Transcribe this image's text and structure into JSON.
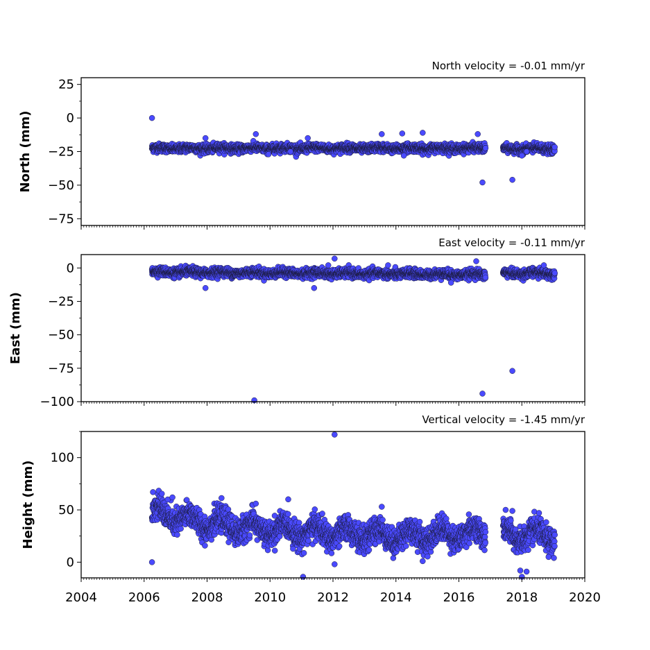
{
  "chart_data": [
    {
      "type": "scatter",
      "title": "North velocity = -0.01 mm/yr",
      "ylabel": "North (mm)",
      "xlim": [
        2004,
        2020
      ],
      "ylim": [
        -80,
        30
      ],
      "yticks": [
        25,
        0,
        -25,
        -50,
        -75
      ],
      "grid": false,
      "marker_color": "#4a4aff",
      "marker_edge": "#1a1a3a",
      "series": [
        {
          "baseline": [
            [
              2006.25,
              -22.5
            ],
            [
              2016.8,
              -22.5
            ],
            [
              2017.45,
              -23
            ],
            [
              2019.05,
              -23
            ]
          ],
          "noise_sd": 1.5,
          "seasonal_amp": 0.5,
          "gap": [
            2016.85,
            2017.4
          ],
          "outliers": [
            [
              2006.25,
              0
            ],
            [
              2007.95,
              -15
            ],
            [
              2009.55,
              -12
            ],
            [
              2009.95,
              -27
            ],
            [
              2010.65,
              -25
            ],
            [
              2011.2,
              -15
            ],
            [
              2013.55,
              -12
            ],
            [
              2014.2,
              -11.5
            ],
            [
              2014.85,
              -11
            ],
            [
              2014.25,
              -28
            ],
            [
              2016.6,
              -12
            ],
            [
              2016.75,
              -48
            ],
            [
              2017.7,
              -46
            ],
            [
              2018.0,
              -28
            ],
            [
              2018.15,
              -25
            ]
          ]
        }
      ]
    },
    {
      "type": "scatter",
      "title": "East velocity = -0.11 mm/yr",
      "ylabel": "East (mm)",
      "xlim": [
        2004,
        2020
      ],
      "ylim": [
        -100,
        10
      ],
      "yticks": [
        0,
        -25,
        -50,
        -75,
        -100
      ],
      "grid": false,
      "marker_color": "#4a4aff",
      "marker_edge": "#1a1a3a",
      "series": [
        {
          "baseline": [
            [
              2006.25,
              -3
            ],
            [
              2016.8,
              -5
            ],
            [
              2017.45,
              -4
            ],
            [
              2019.05,
              -4
            ]
          ],
          "noise_sd": 1.6,
          "seasonal_amp": 0.6,
          "gap": [
            2016.85,
            2017.4
          ],
          "outliers": [
            [
              2007.95,
              -15
            ],
            [
              2009.5,
              -99
            ],
            [
              2011.4,
              -15
            ],
            [
              2012.05,
              7
            ],
            [
              2011.85,
              2
            ],
            [
              2013.75,
              2
            ],
            [
              2015.75,
              -11
            ],
            [
              2016.55,
              5
            ],
            [
              2016.75,
              -94
            ],
            [
              2017.7,
              -77
            ],
            [
              2018.7,
              2
            ]
          ]
        }
      ]
    },
    {
      "type": "scatter",
      "title": "Vertical velocity = -1.45 mm/yr",
      "ylabel": "Height (mm)",
      "xlim": [
        2004,
        2020
      ],
      "ylim": [
        -15,
        125
      ],
      "yticks": [
        100,
        50,
        0
      ],
      "grid": false,
      "marker_color": "#4a4aff",
      "marker_edge": "#1a1a3a",
      "series": [
        {
          "baseline": [
            [
              2006.25,
              48
            ],
            [
              2007.5,
              40
            ],
            [
              2009.5,
              32
            ],
            [
              2012,
              28
            ],
            [
              2014,
              25
            ],
            [
              2016.8,
              28
            ],
            [
              2017.45,
              26
            ],
            [
              2019.05,
              25
            ]
          ],
          "noise_sd": 6,
          "seasonal_amp": 6,
          "gap": [
            2016.85,
            2017.4
          ],
          "outliers": [
            [
              2006.25,
              0
            ],
            [
              2012.05,
              122
            ],
            [
              2011.05,
              -14
            ],
            [
              2012.05,
              -2
            ],
            [
              2014.85,
              1
            ],
            [
              2017.95,
              -8
            ],
            [
              2018.15,
              -9
            ],
            [
              2018.0,
              -14
            ],
            [
              2017.7,
              49
            ],
            [
              2006.75,
              60
            ],
            [
              2006.9,
              62
            ],
            [
              2013.55,
              53
            ],
            [
              2009.55,
              56
            ],
            [
              2018.85,
              5
            ]
          ]
        }
      ]
    }
  ],
  "xaxis": {
    "ticks": [
      2004,
      2006,
      2008,
      2010,
      2012,
      2014,
      2016,
      2018,
      2020
    ],
    "tick_labels": [
      "2004",
      "2006",
      "2008",
      "2010",
      "2012",
      "2014",
      "2016",
      "2018",
      "2020"
    ]
  }
}
